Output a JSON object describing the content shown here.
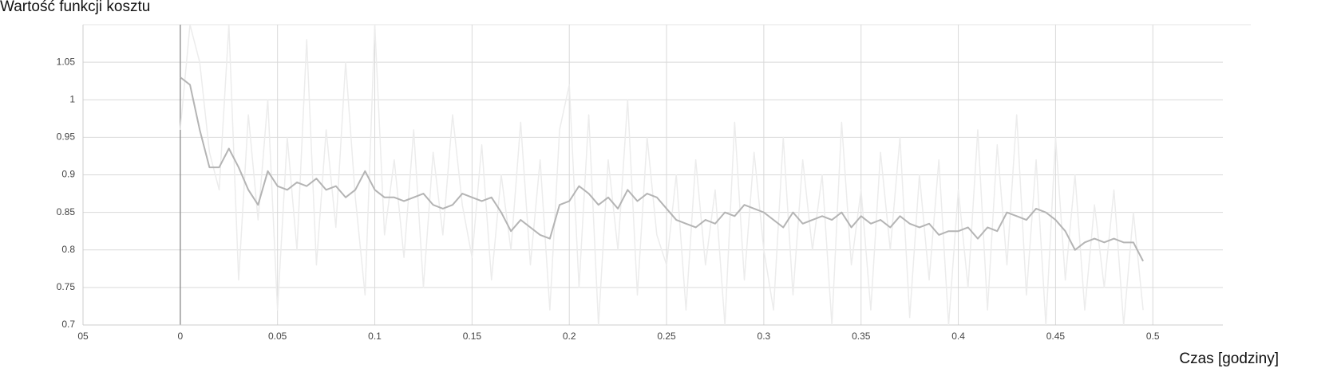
{
  "chart_data": {
    "type": "line",
    "title": "Wartość funkcji kosztu",
    "x_label": "Czas [godziny]",
    "x": [
      0,
      0.005,
      0.01,
      0.015,
      0.02,
      0.025,
      0.03,
      0.035,
      0.04,
      0.045,
      0.05,
      0.055,
      0.06,
      0.065,
      0.07,
      0.075,
      0.08,
      0.085,
      0.09,
      0.095,
      0.1,
      0.105,
      0.11,
      0.115,
      0.12,
      0.125,
      0.13,
      0.135,
      0.14,
      0.145,
      0.15,
      0.155,
      0.16,
      0.165,
      0.17,
      0.175,
      0.18,
      0.185,
      0.19,
      0.195,
      0.2,
      0.205,
      0.21,
      0.215,
      0.22,
      0.225,
      0.23,
      0.235,
      0.24,
      0.245,
      0.25,
      0.255,
      0.26,
      0.265,
      0.27,
      0.275,
      0.28,
      0.285,
      0.29,
      0.295,
      0.3,
      0.305,
      0.31,
      0.315,
      0.32,
      0.325,
      0.33,
      0.335,
      0.34,
      0.345,
      0.35,
      0.355,
      0.36,
      0.365,
      0.37,
      0.375,
      0.38,
      0.385,
      0.39,
      0.395,
      0.4,
      0.405,
      0.41,
      0.415,
      0.42,
      0.425,
      0.43,
      0.435,
      0.44,
      0.445,
      0.45,
      0.455,
      0.46,
      0.465,
      0.47,
      0.475,
      0.48,
      0.485,
      0.49,
      0.495
    ],
    "series": [
      {
        "color": "#ececec",
        "values": [
          0.96,
          1.1,
          1.05,
          0.93,
          0.88,
          1.1,
          0.76,
          0.98,
          0.84,
          1.0,
          0.72,
          0.95,
          0.8,
          1.08,
          0.78,
          0.96,
          0.83,
          1.05,
          0.87,
          0.74,
          1.1,
          0.82,
          0.92,
          0.79,
          0.96,
          0.75,
          0.93,
          0.82,
          0.98,
          0.86,
          0.79,
          0.94,
          0.76,
          0.9,
          0.8,
          0.97,
          0.78,
          0.92,
          0.72,
          0.96,
          1.02,
          0.75,
          0.98,
          0.7,
          0.92,
          0.8,
          1.0,
          0.74,
          0.95,
          0.82,
          0.78,
          0.9,
          0.72,
          0.92,
          0.78,
          0.88,
          0.7,
          0.97,
          0.76,
          0.93,
          0.8,
          0.72,
          0.95,
          0.74,
          0.92,
          0.8,
          0.9,
          0.7,
          0.97,
          0.78,
          0.88,
          0.72,
          0.93,
          0.8,
          0.95,
          0.71,
          0.9,
          0.76,
          0.92,
          0.7,
          0.88,
          0.75,
          0.96,
          0.72,
          0.94,
          0.78,
          0.98,
          0.74,
          0.92,
          0.7,
          0.95,
          0.76,
          0.9,
          0.72,
          0.86,
          0.75,
          0.88,
          0.7,
          0.85,
          0.72
        ]
      },
      {
        "color": "#b4b4b4",
        "values": [
          1.03,
          1.02,
          0.96,
          0.91,
          0.91,
          0.935,
          0.91,
          0.88,
          0.86,
          0.905,
          0.885,
          0.88,
          0.89,
          0.885,
          0.895,
          0.88,
          0.885,
          0.87,
          0.88,
          0.905,
          0.88,
          0.87,
          0.87,
          0.865,
          0.87,
          0.875,
          0.86,
          0.855,
          0.86,
          0.875,
          0.87,
          0.865,
          0.87,
          0.85,
          0.825,
          0.84,
          0.83,
          0.82,
          0.815,
          0.86,
          0.865,
          0.885,
          0.875,
          0.86,
          0.87,
          0.855,
          0.88,
          0.865,
          0.875,
          0.87,
          0.855,
          0.84,
          0.835,
          0.83,
          0.84,
          0.835,
          0.85,
          0.845,
          0.86,
          0.855,
          0.85,
          0.84,
          0.83,
          0.85,
          0.835,
          0.84,
          0.845,
          0.84,
          0.85,
          0.83,
          0.845,
          0.835,
          0.84,
          0.83,
          0.845,
          0.835,
          0.83,
          0.835,
          0.82,
          0.825,
          0.825,
          0.83,
          0.815,
          0.83,
          0.825,
          0.85,
          0.845,
          0.84,
          0.855,
          0.85,
          0.84,
          0.825,
          0.8,
          0.81,
          0.815,
          0.81,
          0.815,
          0.81,
          0.81,
          0.785
        ]
      }
    ],
    "xlim": [
      -0.05,
      0.536
    ],
    "ylim": [
      0.7,
      1.1
    ],
    "xticks": [
      {
        "value": -0.05,
        "label": "05"
      },
      0,
      0.05,
      0.1,
      0.15,
      0.2,
      0.25,
      0.3,
      0.35,
      0.4,
      0.45,
      0.5
    ],
    "yticks": [
      0.7,
      0.75,
      0.8,
      0.85,
      0.9,
      0.95,
      1,
      1.05
    ],
    "grid": true
  }
}
